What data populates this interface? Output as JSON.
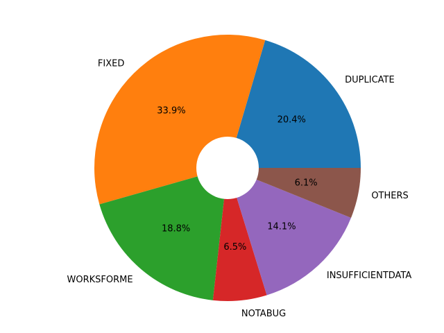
{
  "chart_data": {
    "type": "pie",
    "donut": true,
    "start_angle_deg": 0,
    "direction": "counterclockwise",
    "slices": [
      {
        "label": "DUPLICATE",
        "percent": 20.4,
        "percent_label": "20.4%",
        "color": "#1f77b4"
      },
      {
        "label": "FIXED",
        "percent": 33.9,
        "percent_label": "33.9%",
        "color": "#ff7f0e"
      },
      {
        "label": "WORKSFORME",
        "percent": 18.8,
        "percent_label": "18.8%",
        "color": "#2ca02c"
      },
      {
        "label": "NOTABUG",
        "percent": 6.5,
        "percent_label": "6.5%",
        "color": "#d62728"
      },
      {
        "label": "INSUFFICIENTDATA",
        "percent": 14.1,
        "percent_label": "14.1%",
        "color": "#9467bd"
      },
      {
        "label": "OTHERS",
        "percent": 6.1,
        "percent_label": "6.1%",
        "color": "#8c564b"
      }
    ],
    "title": "",
    "legend": "none"
  }
}
